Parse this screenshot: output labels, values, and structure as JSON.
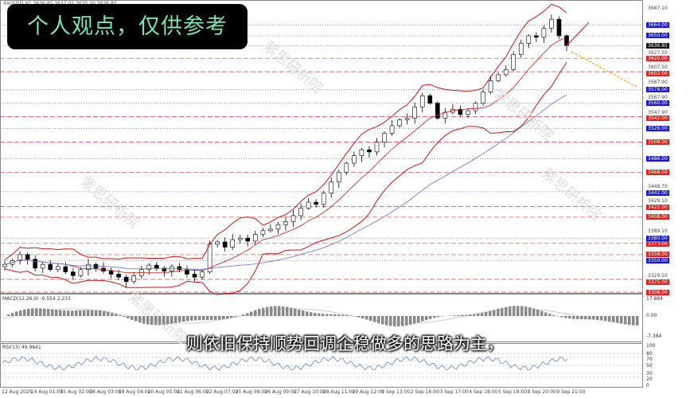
{
  "window": {
    "symbol": "XAUUSD,H1 3636.85 3637.02 3635.20 3636.85"
  },
  "banner": {
    "text": "个人观点，仅供参考"
  },
  "subtitle": {
    "text": "则依旧保持顺势回调企稳做多的思路为主，"
  },
  "watermark": {
    "text": "紫思研析院"
  },
  "colors": {
    "bull": "#000000",
    "band": "#c01818",
    "ma": "#6a6acc",
    "blue_label": "#1a1acc",
    "red_label": "#dd2222",
    "banner_text": "#7fe3b0",
    "macd_hist": "#888888"
  },
  "price_axis": [
    {
      "v": "3687.10",
      "s": "plain"
    },
    {
      "v": "3664.00",
      "s": "blue"
    },
    {
      "v": "3650.00",
      "s": "blue"
    },
    {
      "v": "3636.85",
      "s": "black"
    },
    {
      "v": "3627.50",
      "s": "plain"
    },
    {
      "v": "3620.00",
      "s": "red"
    },
    {
      "v": "3607.50",
      "s": "plain"
    },
    {
      "v": "3602.00",
      "s": "red"
    },
    {
      "v": "3587.90",
      "s": "plain"
    },
    {
      "v": "3578.00",
      "s": "blue"
    },
    {
      "v": "3567.90",
      "s": "plain"
    },
    {
      "v": "3560.00",
      "s": "blue"
    },
    {
      "v": "3547.90",
      "s": "plain"
    },
    {
      "v": "3542.00",
      "s": "red"
    },
    {
      "v": "3526.00",
      "s": "blue"
    },
    {
      "v": "3508.00",
      "s": "red"
    },
    {
      "v": "3486.00",
      "s": "blue"
    },
    {
      "v": "3468.00",
      "s": "red"
    },
    {
      "v": "3448.70",
      "s": "plain"
    },
    {
      "v": "3442.00",
      "s": "blue"
    },
    {
      "v": "3429.10",
      "s": "plain"
    },
    {
      "v": "3422.00",
      "s": "red"
    },
    {
      "v": "3408.00",
      "s": "red"
    },
    {
      "v": "3389.10",
      "s": "plain"
    },
    {
      "v": "3380.00",
      "s": "blue"
    },
    {
      "v": "3373.00",
      "s": "red"
    },
    {
      "v": "3358.00",
      "s": "red"
    },
    {
      "v": "3350.00",
      "s": "blue"
    },
    {
      "v": "3329.50",
      "s": "plain"
    },
    {
      "v": "3325.00",
      "s": "red"
    },
    {
      "v": "3308.00",
      "s": "red"
    }
  ],
  "macd": {
    "label": "MACD(12,26,9) -0.554 2.233",
    "axis": [
      "17.884",
      "0.00",
      "-7.384"
    ]
  },
  "rsi": {
    "label": "RSI(13) 49.9641",
    "axis": [
      "100",
      "80",
      "70",
      "50",
      "30",
      "20",
      "0"
    ]
  },
  "time_axis": [
    "12 Aug 2025",
    "14 Aug 01:00",
    "15 Aug 02:00",
    "18 Aug 03:00",
    "19 Aug 04:00",
    "20 Aug 05:00",
    "21 Aug 06:00",
    "22 Aug 07:00",
    "25 Aug 08:00",
    "26 Aug 09:00",
    "27 Aug 10:00",
    "28 Aug 11:00",
    "29 Aug 12:00",
    "1 Sep 13:00",
    "2 Sep 16:00",
    "3 Sep 17:00",
    "4 Sep 18:00",
    "5 Sep 19:00",
    "8 Sep 20:00",
    "9 Sep 21:00"
  ],
  "chart_data": {
    "type": "candlestick",
    "price_range": [
      3308,
      3687.1
    ],
    "closes": [
      3345,
      3350,
      3358,
      3352,
      3340,
      3345,
      3338,
      3342,
      3335,
      3330,
      3338,
      3345,
      3340,
      3336,
      3332,
      3328,
      3322,
      3330,
      3338,
      3344,
      3340,
      3336,
      3342,
      3338,
      3332,
      3328,
      3335,
      3372,
      3375,
      3368,
      3378,
      3380,
      3376,
      3385,
      3390,
      3392,
      3398,
      3402,
      3410,
      3420,
      3428,
      3425,
      3440,
      3455,
      3468,
      3480,
      3490,
      3498,
      3495,
      3508,
      3520,
      3530,
      3538,
      3540,
      3555,
      3570,
      3560,
      3540,
      3548,
      3552,
      3545,
      3550,
      3560,
      3575,
      3590,
      3598,
      3605,
      3625,
      3640,
      3650,
      3648,
      3660,
      3672,
      3650,
      3636.85
    ],
    "projection": {
      "up_target": 3668,
      "down_target": 3582
    }
  }
}
